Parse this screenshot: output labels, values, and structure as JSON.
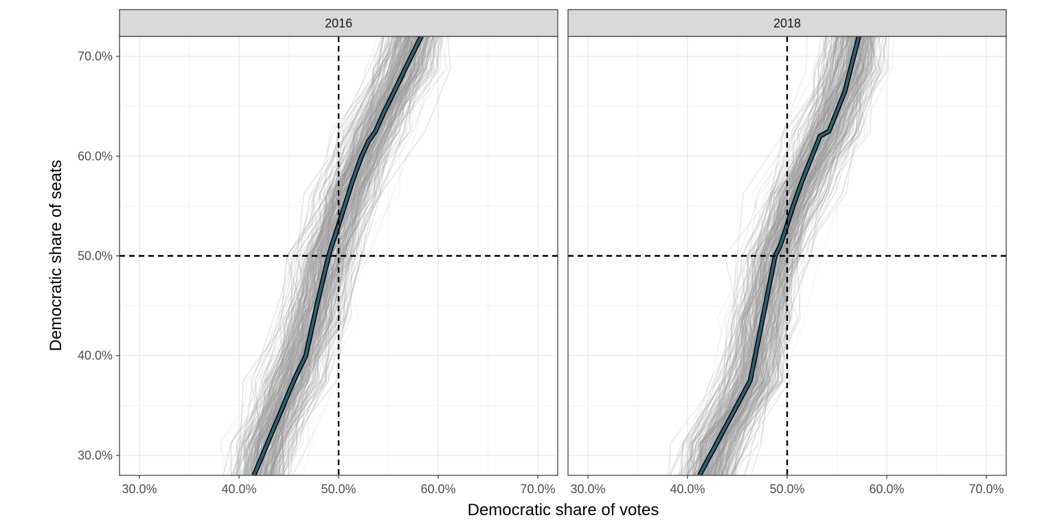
{
  "chart_data": {
    "type": "line",
    "xlabel": "Democratic share of votes",
    "ylabel": "Democratic share of seats",
    "xlim": [
      0.28,
      0.72
    ],
    "ylim": [
      0.28,
      0.72
    ],
    "x_ticks": [
      0.3,
      0.4,
      0.5,
      0.6,
      0.7
    ],
    "x_tick_labels": [
      "30.0%",
      "40.0%",
      "50.0%",
      "60.0%",
      "70.0%"
    ],
    "y_ticks": [
      0.3,
      0.4,
      0.5,
      0.6,
      0.7
    ],
    "y_tick_labels": [
      "30.0%",
      "40.0%",
      "50.0%",
      "60.0%",
      "70.0%"
    ],
    "grid": true,
    "reference_lines": {
      "x": 0.5,
      "y": 0.5,
      "style": "dashed"
    },
    "colors": {
      "main_line": "#2f5f73",
      "simulations": "#999999",
      "strip": "#d9d9d9",
      "panel_border": "#333333"
    },
    "panels": [
      {
        "title": "2016",
        "main_curve": {
          "x": [
            0.415,
            0.455,
            0.467,
            0.478,
            0.49,
            0.493,
            0.498,
            0.506,
            0.514,
            0.523,
            0.53,
            0.537,
            0.546,
            0.556,
            0.568,
            0.583
          ],
          "y": [
            0.28,
            0.375,
            0.4,
            0.45,
            0.5,
            0.51,
            0.525,
            0.55,
            0.575,
            0.6,
            0.615,
            0.625,
            0.645,
            0.665,
            0.69,
            0.72
          ]
        }
      },
      {
        "title": "2018",
        "main_curve": {
          "x": [
            0.412,
            0.463,
            0.47,
            0.48,
            0.488,
            0.493,
            0.498,
            0.506,
            0.515,
            0.525,
            0.533,
            0.542,
            0.55,
            0.558,
            0.572
          ],
          "y": [
            0.28,
            0.375,
            0.41,
            0.46,
            0.5,
            0.51,
            0.525,
            0.55,
            0.575,
            0.6,
            0.62,
            0.625,
            0.645,
            0.665,
            0.72
          ]
        }
      }
    ]
  }
}
